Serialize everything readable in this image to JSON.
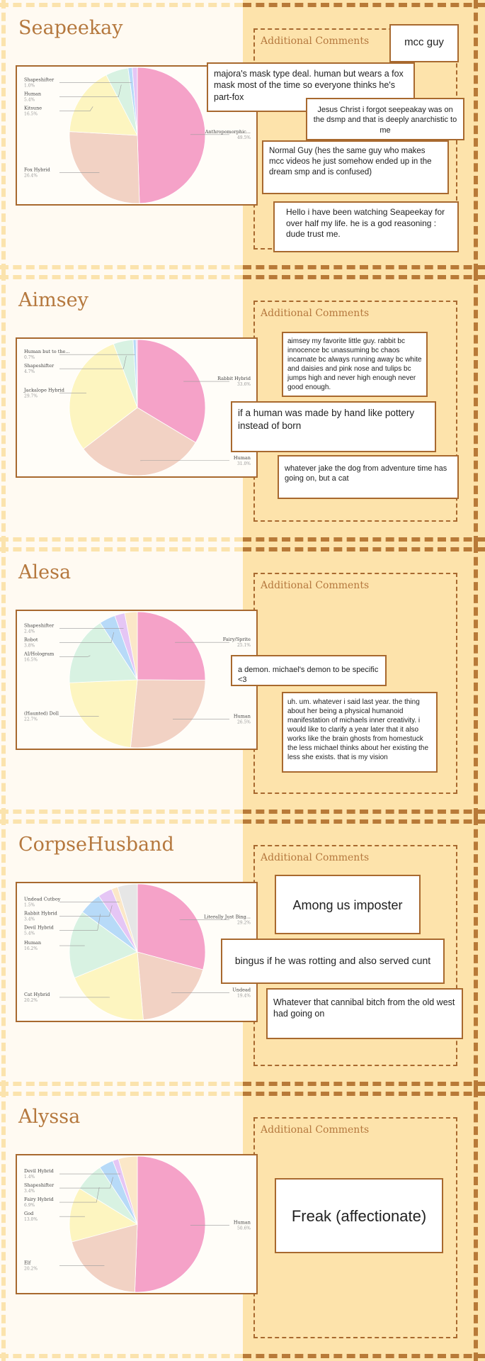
{
  "colors": {
    "accent": "#b5783e",
    "border": "#a8692f",
    "panel": "#fde3ab",
    "stripe_left": "#fbe3ad",
    "stripe_right": "#b87a38",
    "palette": [
      "#f5a2c8",
      "#f2d2c4",
      "#fdf5c0",
      "#d8f2e2",
      "#b7daf8",
      "#e5c6f5",
      "#fbe7c8",
      "#e6e6e6"
    ]
  },
  "sections": [
    {
      "name": "Seapeekay",
      "comments_title": "Additional Comments",
      "notes": [
        {
          "text": "mcc guy"
        },
        {
          "text": "majora's mask type deal. human but wears a fox mask most of the time so everyone thinks he's part-fox"
        },
        {
          "text": "Jesus Christ i forgot seepeakay was on the dsmp and that is deeply anarchistic to me"
        },
        {
          "text": "Normal Guy (hes the same guy who makes mcc videos he just somehow ended up in the dream smp and is confused)"
        },
        {
          "text": "Hello i have been watching Seapeekay for over half my life. he is a god reasoning : dude trust me."
        }
      ],
      "slice_labels": [
        {
          "name": "Anthropomorphic...",
          "pct": "49.5%"
        },
        {
          "name": "Fox Hybrid",
          "pct": "26.4%"
        },
        {
          "name": "Kitsune",
          "pct": "16.5%"
        },
        {
          "name": "Human",
          "pct": "5.4%"
        },
        {
          "name": "Shapeshifter",
          "pct": "1.0%"
        }
      ]
    },
    {
      "name": "Aimsey",
      "comments_title": "Additional Comments",
      "notes": [
        {
          "text": "aimsey my favorite little guy. rabbit bc innocence bc unassuming bc chaos incarnate bc always running away bc white and daisies and pink nose and tulips bc jumps high and never high enough never good enough."
        },
        {
          "text": "if a human was made by hand like pottery instead of born"
        },
        {
          "text": "whatever jake the dog from adventure time has going on, but a cat"
        }
      ],
      "slice_labels": [
        {
          "name": "Rabbit Hybrid",
          "pct": "33.6%"
        },
        {
          "name": "Human",
          "pct": "31.0%"
        },
        {
          "name": "Jackalope Hybrid",
          "pct": "29.7%"
        },
        {
          "name": "Shapeshifter",
          "pct": "4.7%"
        },
        {
          "name": "Human but to the...",
          "pct": "0.7%"
        }
      ]
    },
    {
      "name": "Alesa",
      "comments_title": "Additional Comments",
      "notes": [
        {
          "text": "a demon. michael's demon to be specific <3"
        },
        {
          "text": "uh. um. whatever i said last year. the thing about her being a physical humanoid manifestation of michaels inner creativity. i would like to clarify a year later that it also works like the brain ghosts from homestuck the less michael thinks about her existing the less she exists. that is my vision"
        }
      ],
      "slice_labels": [
        {
          "name": "Fairy/Sprite",
          "pct": "25.1%"
        },
        {
          "name": "Human",
          "pct": "26.5%"
        },
        {
          "name": "(Haunted) Doll",
          "pct": "22.7%"
        },
        {
          "name": "AI/Hologram",
          "pct": "16.5%"
        },
        {
          "name": "Robot",
          "pct": "3.8%"
        },
        {
          "name": "Shapeshifter",
          "pct": "2.4%"
        }
      ]
    },
    {
      "name": "CorpseHusband",
      "comments_title": "Additional Comments",
      "notes": [
        {
          "text": "Among us imposter"
        },
        {
          "text": "bingus if he was rotting and also served cunt"
        },
        {
          "text": "Whatever that cannibal bitch from the old west had going on"
        }
      ],
      "slice_labels": [
        {
          "name": "Literally Just Bing...",
          "pct": "29.2%"
        },
        {
          "name": "Undead",
          "pct": "19.4%"
        },
        {
          "name": "Cat Hybrid",
          "pct": "20.2%"
        },
        {
          "name": "Human",
          "pct": "16.2%"
        },
        {
          "name": "Devil Hybrid",
          "pct": "5.4%"
        },
        {
          "name": "Rabbit Hybrid",
          "pct": "3.4%"
        },
        {
          "name": "Undead Cutboy",
          "pct": "1.5%"
        }
      ]
    },
    {
      "name": "Alyssa",
      "comments_title": "Additional Comments",
      "notes": [
        {
          "text": "Freak (affectionate)"
        }
      ],
      "slice_labels": [
        {
          "name": "Human",
          "pct": "50.6%"
        },
        {
          "name": "Elf",
          "pct": "20.2%"
        },
        {
          "name": "God",
          "pct": "13.0%"
        },
        {
          "name": "Fairy Hybrid",
          "pct": "6.9%"
        },
        {
          "name": "Shapeshifter",
          "pct": "3.4%"
        },
        {
          "name": "Devil Hybrid",
          "pct": "1.4%"
        }
      ]
    }
  ],
  "chart_data": [
    {
      "type": "pie",
      "title": "",
      "legend": "none",
      "slices": [
        {
          "label": "Anthropomorphic...",
          "value": 49.5
        },
        {
          "label": "Fox Hybrid",
          "value": 26.4
        },
        {
          "label": "Kitsune",
          "value": 16.5
        },
        {
          "label": "Human",
          "value": 5.4
        },
        {
          "label": "Shapeshifter",
          "value": 1.0
        },
        {
          "label": "",
          "value": 1.2
        }
      ]
    },
    {
      "type": "pie",
      "title": "",
      "legend": "none",
      "slices": [
        {
          "label": "Rabbit Hybrid",
          "value": 33.6
        },
        {
          "label": "Human",
          "value": 31.0
        },
        {
          "label": "Jackalope Hybrid",
          "value": 29.7
        },
        {
          "label": "Shapeshifter",
          "value": 4.7
        },
        {
          "label": "Human but to the...",
          "value": 0.7
        },
        {
          "label": "",
          "value": 0.3
        }
      ]
    },
    {
      "type": "pie",
      "title": "",
      "legend": "none",
      "slices": [
        {
          "label": "Fairy/Sprite",
          "value": 25.1
        },
        {
          "label": "Human",
          "value": 26.5
        },
        {
          "label": "(Haunted) Doll",
          "value": 22.7
        },
        {
          "label": "AI/Hologram",
          "value": 16.5
        },
        {
          "label": "Robot",
          "value": 3.8
        },
        {
          "label": "Shapeshifter",
          "value": 2.4
        },
        {
          "label": "",
          "value": 3.0
        }
      ]
    },
    {
      "type": "pie",
      "title": "",
      "legend": "none",
      "slices": [
        {
          "label": "Literally Just Bing...",
          "value": 29.2
        },
        {
          "label": "Undead",
          "value": 19.4
        },
        {
          "label": "Cat Hybrid",
          "value": 20.2
        },
        {
          "label": "Human",
          "value": 16.2
        },
        {
          "label": "Devil Hybrid",
          "value": 5.4
        },
        {
          "label": "Rabbit Hybrid",
          "value": 3.4
        },
        {
          "label": "Undead Cutboy",
          "value": 1.5
        },
        {
          "label": "",
          "value": 4.7
        }
      ]
    },
    {
      "type": "pie",
      "title": "",
      "legend": "none",
      "slices": [
        {
          "label": "Human",
          "value": 50.6
        },
        {
          "label": "Elf",
          "value": 20.2
        },
        {
          "label": "God",
          "value": 13.0
        },
        {
          "label": "Fairy Hybrid",
          "value": 6.9
        },
        {
          "label": "Shapeshifter",
          "value": 3.4
        },
        {
          "label": "Devil Hybrid",
          "value": 1.4
        },
        {
          "label": "",
          "value": 4.5
        }
      ]
    }
  ]
}
